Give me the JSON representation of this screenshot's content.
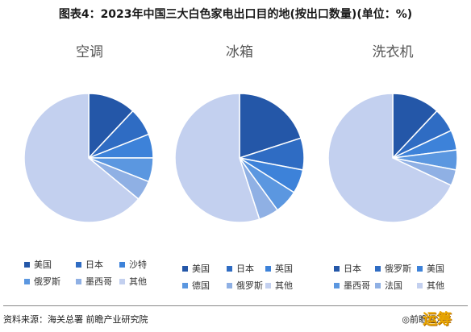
{
  "title": "图表4：2023年中国三大白色家电出口目的地(按出口数量)(单位：%)",
  "source": "资料来源：海关总署 前瞻产业研究院",
  "brand": "◎前瞻经济",
  "brand_logo": "运筹",
  "colors": {
    "c1": "#2457a8",
    "c2": "#2f6cc3",
    "c3": "#3d82d9",
    "c4": "#5b97e0",
    "c5": "#8fb0e4",
    "c6": "#c3d0ef"
  },
  "chart_data": [
    {
      "type": "pie",
      "title": "空调",
      "labels": [
        "美国",
        "日本",
        "沙特",
        "俄罗斯",
        "墨西哥",
        "其他"
      ],
      "values": [
        12,
        7,
        6,
        6,
        5,
        64
      ]
    },
    {
      "type": "pie",
      "title": "冰箱",
      "labels": [
        "美国",
        "日本",
        "英国",
        "德国",
        "俄罗斯",
        "其他"
      ],
      "values": [
        20,
        8,
        6,
        6,
        5,
        55
      ]
    },
    {
      "type": "pie",
      "title": "洗衣机",
      "labels": [
        "日本",
        "俄罗斯",
        "美国",
        "墨西哥",
        "法国",
        "其他"
      ],
      "values": [
        12,
        6,
        5,
        5,
        4,
        68
      ]
    }
  ]
}
